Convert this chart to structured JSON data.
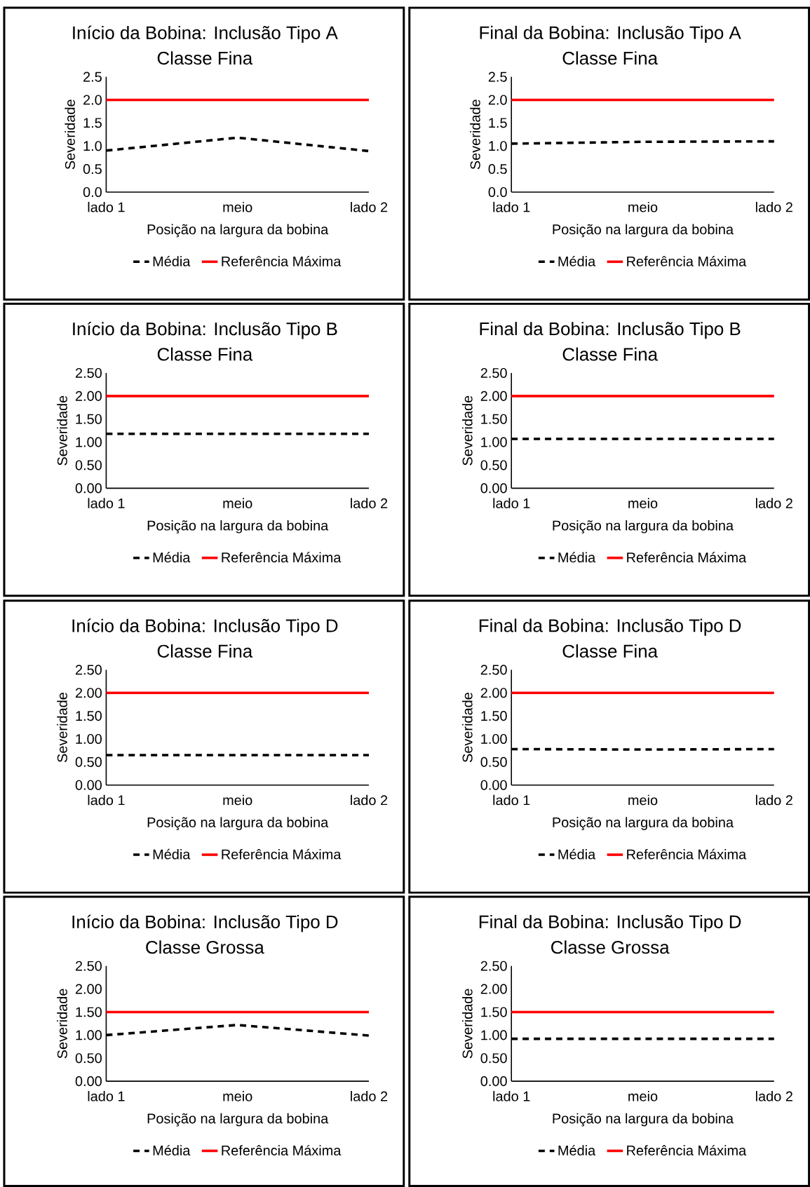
{
  "chart_data": [
    {
      "type": "line",
      "title": "Início da Bobina: Inclusão Tipo A",
      "subtitle": "Classe Fina",
      "xlabel": "Posição na largura da bobina",
      "ylabel": "Severidade",
      "categories": [
        "lado 1",
        "meio",
        "lado 2"
      ],
      "ylim": [
        0,
        2.5
      ],
      "yticks": [
        {
          "value": 0,
          "label": "0.0"
        },
        {
          "value": 0.5,
          "label": "0.5"
        },
        {
          "value": 1,
          "label": "1.0"
        },
        {
          "value": 1.5,
          "label": "1.5"
        },
        {
          "value": 2,
          "label": "2.0"
        },
        {
          "value": 2.5,
          "label": "2.5"
        }
      ],
      "grid": false,
      "legend": "bottom",
      "marker": "none",
      "series": [
        {
          "name": "Média",
          "color": "#000000",
          "line_style": "dashed",
          "values": [
            0.9,
            1.18,
            0.89
          ]
        },
        {
          "name": "Referência Máxima",
          "color": "#ff0000",
          "line_style": "solid",
          "values": [
            2,
            2,
            2
          ]
        }
      ]
    },
    {
      "type": "line",
      "title": "Final da Bobina: Inclusão Tipo A",
      "subtitle": "Classe Fina",
      "xlabel": "Posição na largura da bobina",
      "ylabel": "Severidade",
      "categories": [
        "lado 1",
        "meio",
        "lado 2"
      ],
      "ylim": [
        0,
        2.5
      ],
      "yticks": [
        {
          "value": 0,
          "label": "0.0"
        },
        {
          "value": 0.5,
          "label": "0.5"
        },
        {
          "value": 1,
          "label": "1.0"
        },
        {
          "value": 1.5,
          "label": "1.5"
        },
        {
          "value": 2,
          "label": "2.0"
        },
        {
          "value": 2.5,
          "label": "2.5"
        }
      ],
      "grid": false,
      "legend": "bottom",
      "marker": "none",
      "series": [
        {
          "name": "Média",
          "color": "#000000",
          "line_style": "dashed",
          "values": [
            1.05,
            1.09,
            1.1
          ]
        },
        {
          "name": "Referência Máxima",
          "color": "#ff0000",
          "line_style": "solid",
          "values": [
            2,
            2,
            2
          ]
        }
      ]
    },
    {
      "type": "line",
      "title": "Início da Bobina: Inclusão Tipo B",
      "subtitle": "Classe Fina",
      "xlabel": "Posição na largura da bobina",
      "ylabel": "Severidade",
      "categories": [
        "lado 1",
        "meio",
        "lado 2"
      ],
      "ylim": [
        0,
        2.5
      ],
      "yticks": [
        {
          "value": 0,
          "label": "0.00"
        },
        {
          "value": 0.5,
          "label": "0.50"
        },
        {
          "value": 1,
          "label": "1.00"
        },
        {
          "value": 1.5,
          "label": "1.50"
        },
        {
          "value": 2,
          "label": "2.00"
        },
        {
          "value": 2.5,
          "label": "2.50"
        }
      ],
      "grid": false,
      "legend": "bottom",
      "marker": "none",
      "series": [
        {
          "name": "Média",
          "color": "#000000",
          "line_style": "dashed",
          "values": [
            1.18,
            1.18,
            1.18
          ]
        },
        {
          "name": "Referência Máxima",
          "color": "#ff0000",
          "line_style": "solid",
          "values": [
            2,
            2,
            2
          ]
        }
      ]
    },
    {
      "type": "line",
      "title": "Final da Bobina: Inclusão Tipo B",
      "subtitle": "Classe Fina",
      "xlabel": "Posição na largura da bobina",
      "ylabel": "Severidade",
      "categories": [
        "lado 1",
        "meio",
        "lado 2"
      ],
      "ylim": [
        0,
        2.5
      ],
      "yticks": [
        {
          "value": 0,
          "label": "0.00"
        },
        {
          "value": 0.5,
          "label": "0.50"
        },
        {
          "value": 1,
          "label": "1.00"
        },
        {
          "value": 1.5,
          "label": "1.50"
        },
        {
          "value": 2,
          "label": "2.00"
        },
        {
          "value": 2.5,
          "label": "2.50"
        }
      ],
      "grid": false,
      "legend": "bottom",
      "marker": "none",
      "series": [
        {
          "name": "Média",
          "color": "#000000",
          "line_style": "dashed",
          "values": [
            1.07,
            1.07,
            1.07
          ]
        },
        {
          "name": "Referência Máxima",
          "color": "#ff0000",
          "line_style": "solid",
          "values": [
            2,
            2,
            2
          ]
        }
      ]
    },
    {
      "type": "line",
      "title": "Início da Bobina: Inclusão Tipo D",
      "subtitle": "Classe Fina",
      "xlabel": "Posição na largura da bobina",
      "ylabel": "Severidade",
      "categories": [
        "lado 1",
        "meio",
        "lado 2"
      ],
      "ylim": [
        0,
        2.5
      ],
      "yticks": [
        {
          "value": 0,
          "label": "0.00"
        },
        {
          "value": 0.5,
          "label": "0.50"
        },
        {
          "value": 1,
          "label": "1.00"
        },
        {
          "value": 1.5,
          "label": "1.50"
        },
        {
          "value": 2,
          "label": "2.00"
        },
        {
          "value": 2.5,
          "label": "2.50"
        }
      ],
      "grid": false,
      "legend": "bottom",
      "marker": "none",
      "series": [
        {
          "name": "Média",
          "color": "#000000",
          "line_style": "dashed",
          "values": [
            0.65,
            0.65,
            0.65
          ]
        },
        {
          "name": "Referência Máxima",
          "color": "#ff0000",
          "line_style": "solid",
          "values": [
            2,
            2,
            2
          ]
        }
      ]
    },
    {
      "type": "line",
      "title": "Final da Bobina: Inclusão Tipo D",
      "subtitle": "Classe Fina",
      "xlabel": "Posição na largura da bobina",
      "ylabel": "Severidade",
      "categories": [
        "lado 1",
        "meio",
        "lado 2"
      ],
      "ylim": [
        0,
        2.5
      ],
      "yticks": [
        {
          "value": 0,
          "label": "0.00"
        },
        {
          "value": 0.5,
          "label": "0.50"
        },
        {
          "value": 1,
          "label": "1.00"
        },
        {
          "value": 1.5,
          "label": "1.50"
        },
        {
          "value": 2,
          "label": "2.00"
        },
        {
          "value": 2.5,
          "label": "2.50"
        }
      ],
      "grid": false,
      "legend": "bottom",
      "marker": "none",
      "series": [
        {
          "name": "Média",
          "color": "#000000",
          "line_style": "dashed",
          "values": [
            0.78,
            0.77,
            0.78
          ]
        },
        {
          "name": "Referência Máxima",
          "color": "#ff0000",
          "line_style": "solid",
          "values": [
            2,
            2,
            2
          ]
        }
      ]
    },
    {
      "type": "line",
      "title": "Início da Bobina: Inclusão Tipo D",
      "subtitle": "Classe Grossa",
      "xlabel": "Posição na largura da bobina",
      "ylabel": "Severidade",
      "categories": [
        "lado 1",
        "meio",
        "lado 2"
      ],
      "ylim": [
        0,
        2.5
      ],
      "yticks": [
        {
          "value": 0,
          "label": "0.00"
        },
        {
          "value": 0.5,
          "label": "0.50"
        },
        {
          "value": 1,
          "label": "1.00"
        },
        {
          "value": 1.5,
          "label": "1.50"
        },
        {
          "value": 2,
          "label": "2.00"
        },
        {
          "value": 2.5,
          "label": "2.50"
        }
      ],
      "grid": false,
      "legend": "bottom",
      "marker": "none",
      "series": [
        {
          "name": "Média",
          "color": "#000000",
          "line_style": "dashed",
          "values": [
            1.0,
            1.22,
            0.99
          ]
        },
        {
          "name": "Referência Máxima",
          "color": "#ff0000",
          "line_style": "solid",
          "values": [
            1.5,
            1.5,
            1.5
          ]
        }
      ]
    },
    {
      "type": "line",
      "title": "Final da Bobina: Inclusão Tipo D",
      "subtitle": "Classe Grossa",
      "xlabel": "Posição na largura da bobina",
      "ylabel": "Severidade",
      "categories": [
        "lado 1",
        "meio",
        "lado 2"
      ],
      "ylim": [
        0,
        2.5
      ],
      "yticks": [
        {
          "value": 0,
          "label": "0.00"
        },
        {
          "value": 0.5,
          "label": "0.50"
        },
        {
          "value": 1,
          "label": "1.00"
        },
        {
          "value": 1.5,
          "label": "1.50"
        },
        {
          "value": 2,
          "label": "2.00"
        },
        {
          "value": 2.5,
          "label": "2.50"
        }
      ],
      "grid": false,
      "legend": "bottom",
      "marker": "none",
      "series": [
        {
          "name": "Média",
          "color": "#000000",
          "line_style": "dashed",
          "values": [
            0.92,
            0.92,
            0.92
          ]
        },
        {
          "name": "Referência Máxima",
          "color": "#ff0000",
          "line_style": "solid",
          "values": [
            1.5,
            1.5,
            1.5
          ]
        }
      ]
    }
  ]
}
